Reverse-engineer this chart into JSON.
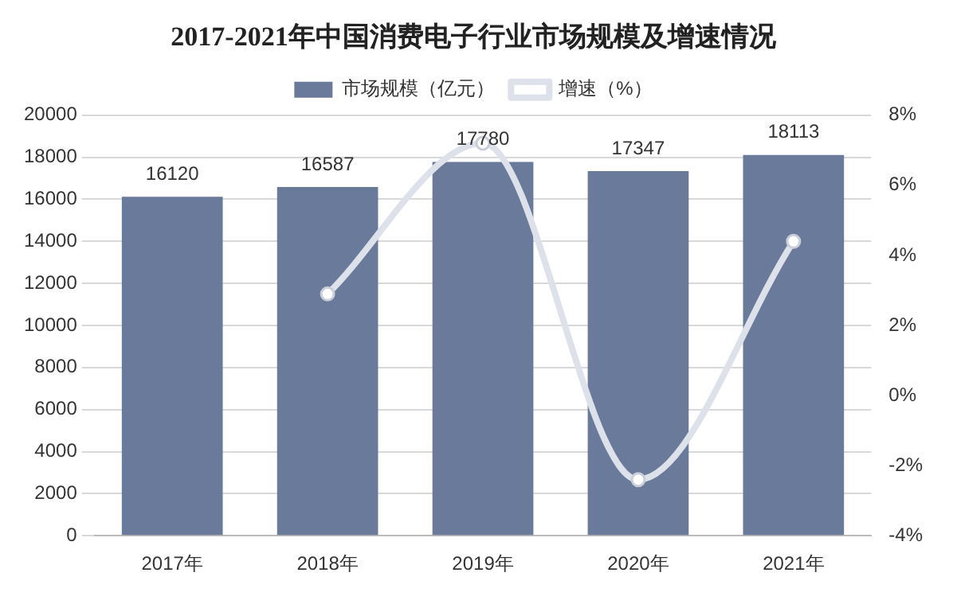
{
  "chart_data": {
    "type": "bar",
    "title": "2017-2021年中国消费电子行业市场规模及增速情况",
    "categories": [
      "2017年",
      "2018年",
      "2019年",
      "2020年",
      "2021年"
    ],
    "series": [
      {
        "name": "市场规模（亿元）",
        "color": "#6a7a9b",
        "values": [
          16120,
          16587,
          17780,
          17347,
          18113
        ],
        "value_labels": [
          "16120",
          "16587",
          "17780",
          "17347",
          "18113"
        ]
      },
      {
        "name": "增速（%）",
        "type": "line",
        "axis": "y2",
        "color": "#dde2ea",
        "values": [
          null,
          2.9,
          7.2,
          -2.4,
          4.4
        ]
      }
    ],
    "ylim": [
      0,
      20000
    ],
    "yticks": [
      0,
      2000,
      4000,
      6000,
      8000,
      10000,
      12000,
      14000,
      16000,
      18000,
      20000
    ],
    "y2lim": [
      -4,
      8
    ],
    "y2ticks": [
      {
        "value": -4,
        "label": "-4%"
      },
      {
        "value": -2,
        "label": "-2%"
      },
      {
        "value": 0,
        "label": "0%"
      },
      {
        "value": 2,
        "label": "2%"
      },
      {
        "value": 4,
        "label": "4%"
      },
      {
        "value": 6,
        "label": "6%"
      },
      {
        "value": 8,
        "label": "8%"
      }
    ],
    "grid": "y",
    "legend": "top",
    "marker": "circle"
  }
}
